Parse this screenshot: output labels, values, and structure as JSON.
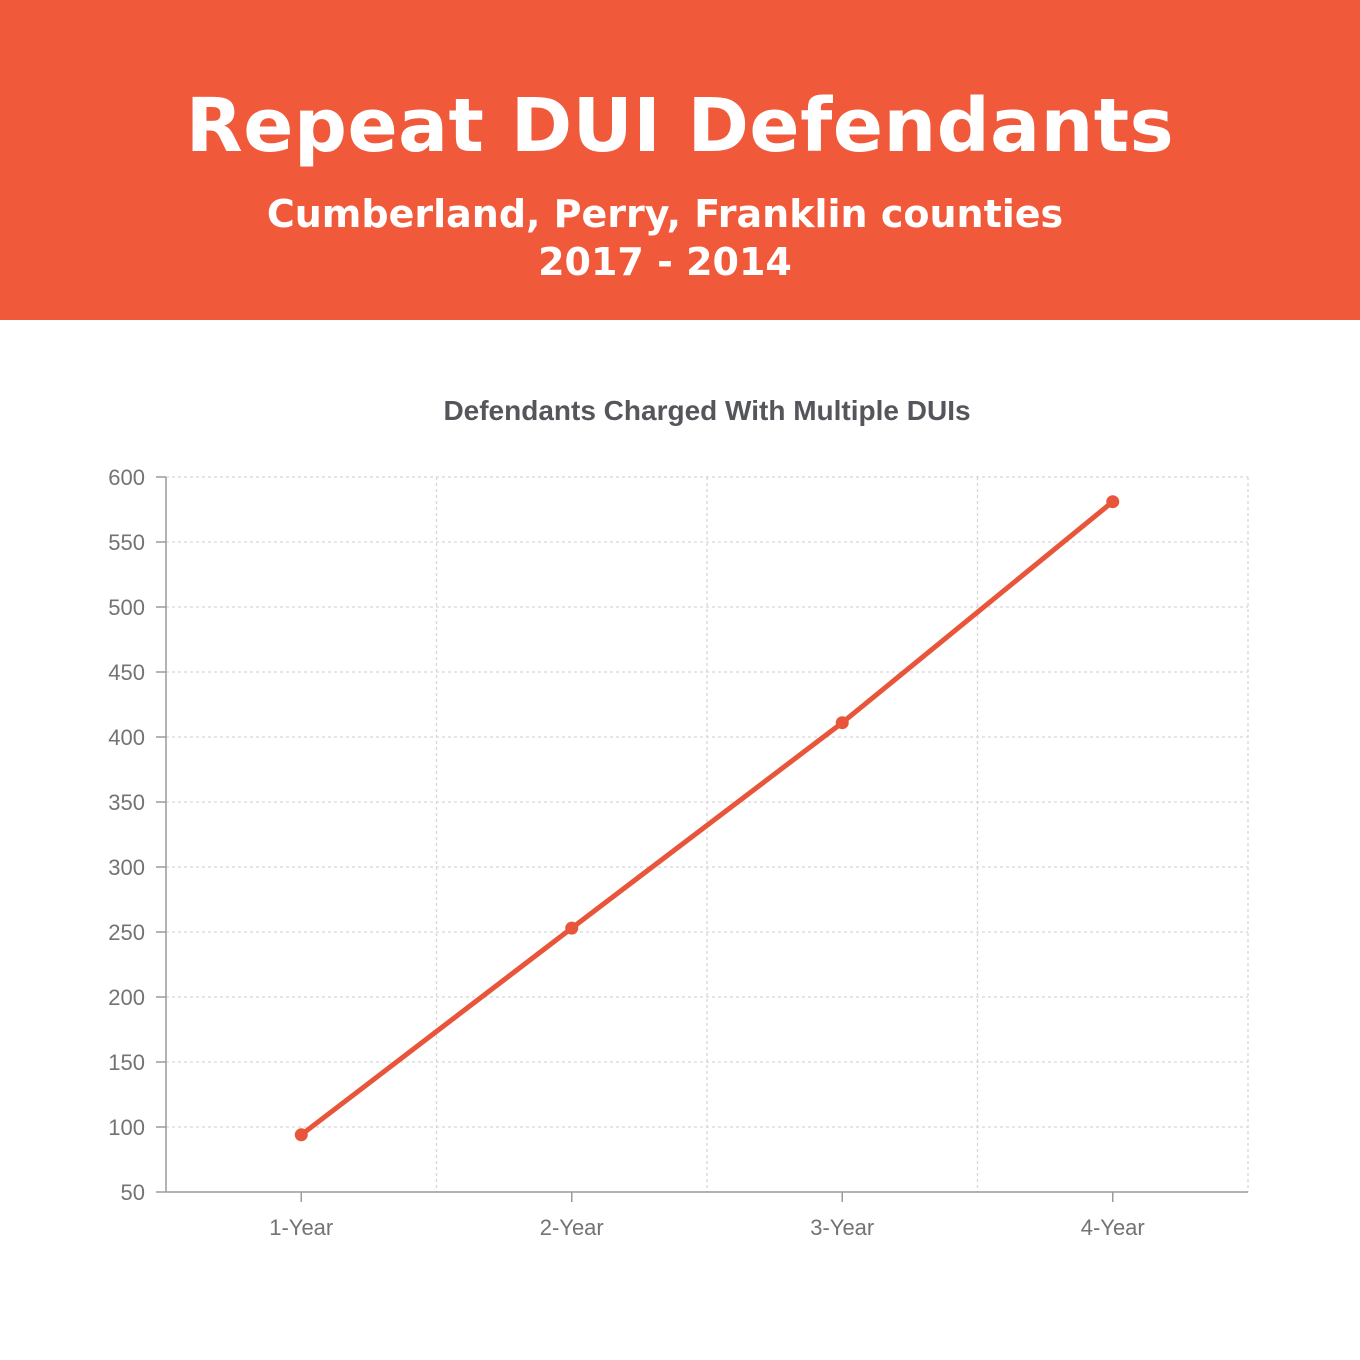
{
  "header": {
    "title": "Repeat DUI Defendants",
    "subtitle_line1": "Cumberland, Perry, Franklin counties",
    "subtitle_line2": "2017 - 2014"
  },
  "colors": {
    "banner": "#f05a3b",
    "series": "#e8553a",
    "grid": "#d7d7d7",
    "axis": "#9a9a9a"
  },
  "chart_data": {
    "type": "line",
    "title": "Defendants Charged With Multiple DUIs",
    "xlabel": "",
    "ylabel": "",
    "categories": [
      "1-Year",
      "2-Year",
      "3-Year",
      "4-Year"
    ],
    "series": [
      {
        "values": [
          94,
          253,
          411,
          581
        ]
      }
    ],
    "ylim": [
      50,
      600
    ],
    "yticks": [
      50,
      100,
      150,
      200,
      250,
      300,
      350,
      400,
      450,
      500,
      550,
      600
    ],
    "grid": true,
    "legend": "none"
  }
}
